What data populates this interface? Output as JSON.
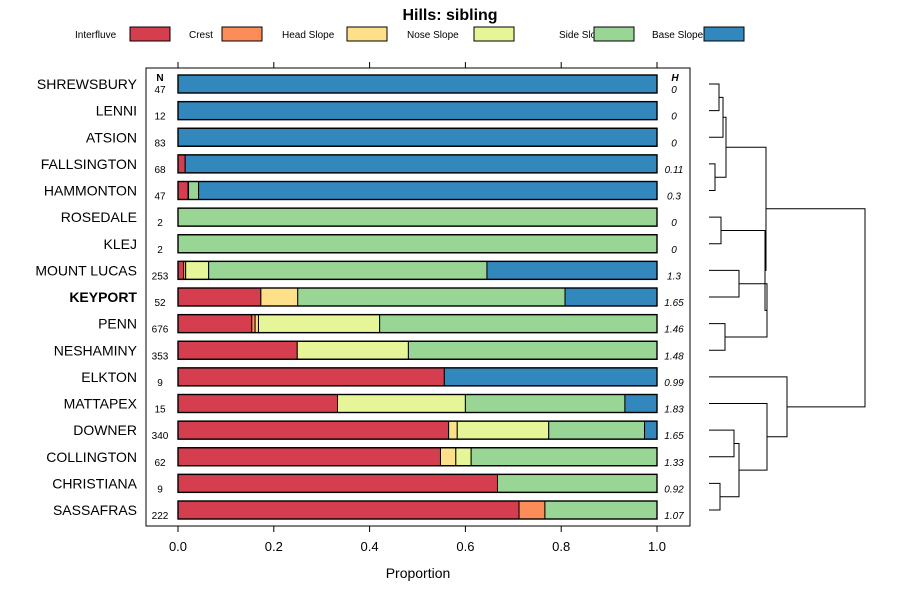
{
  "chart_data": {
    "type": "bar",
    "orientation": "horizontal",
    "stacked": true,
    "title": "Hills: sibling",
    "xlabel": "Proportion",
    "ylabel": "",
    "xlim": [
      0,
      1
    ],
    "xticks": [
      "0.0",
      "0.2",
      "0.4",
      "0.6",
      "0.8",
      "1.0"
    ],
    "xtick_values": [
      0,
      0.2,
      0.4,
      0.6,
      0.8,
      1.0
    ],
    "legend_position": "top",
    "n_header": "N",
    "h_header": "H",
    "highlight": "KEYPORT",
    "categories": [
      "SHREWSBURY",
      "LENNI",
      "ATSION",
      "FALLSINGTON",
      "HAMMONTON",
      "ROSEDALE",
      "KLEJ",
      "MOUNT LUCAS",
      "KEYPORT",
      "PENN",
      "NESHAMINY",
      "ELKTON",
      "MATTAPEX",
      "DOWNER",
      "COLLINGTON",
      "CHRISTIANA",
      "SASSAFRAS"
    ],
    "n": [
      "47",
      "12",
      "83",
      "68",
      "47",
      "2",
      "2",
      "253",
      "52",
      "676",
      "353",
      "9",
      "15",
      "340",
      "62",
      "9",
      "222"
    ],
    "h": [
      "0",
      "0",
      "0",
      "0.11",
      "0.3",
      "0",
      "0",
      "1.3",
      "1.65",
      "1.46",
      "1.48",
      "0.99",
      "1.83",
      "1.65",
      "1.33",
      "0.92",
      "1.07"
    ],
    "series": [
      {
        "name": "Interfluve",
        "color": "#d53e4f",
        "values": [
          0,
          0,
          0,
          0.015,
          0.021,
          0,
          0,
          0.012,
          0.173,
          0.154,
          0.249,
          0.556,
          0.333,
          0.565,
          0.548,
          0.667,
          0.712
        ]
      },
      {
        "name": "Crest",
        "color": "#fc8d59",
        "values": [
          0,
          0,
          0,
          0,
          0,
          0,
          0,
          0,
          0,
          0.007,
          0,
          0,
          0,
          0,
          0,
          0,
          0.054
        ]
      },
      {
        "name": "Head Slope",
        "color": "#fee08b",
        "values": [
          0,
          0,
          0,
          0,
          0,
          0,
          0,
          0.004,
          0.077,
          0.007,
          0,
          0,
          0,
          0.018,
          0.032,
          0,
          0
        ]
      },
      {
        "name": "Nose Slope",
        "color": "#e6f598",
        "values": [
          0,
          0,
          0,
          0,
          0.001,
          0,
          0,
          0.048,
          0,
          0.253,
          0.232,
          0,
          0.267,
          0.191,
          0.032,
          0,
          0
        ]
      },
      {
        "name": "Side Slope",
        "color": "#99d594",
        "values": [
          0,
          0,
          0,
          0,
          0.021,
          1.0,
          1.0,
          0.581,
          0.558,
          0.579,
          0.519,
          0,
          0.333,
          0.2,
          0.388,
          0.333,
          0.234
        ]
      },
      {
        "name": "Base Slope",
        "color": "#3288bd",
        "values": [
          1.0,
          1.0,
          1.0,
          0.985,
          0.957,
          0,
          0,
          0.355,
          0.192,
          0,
          0,
          0.444,
          0.067,
          0.026,
          0,
          0,
          0
        ]
      }
    ],
    "dendrogram": "hierarchical clustering of soils by landform proportions"
  }
}
